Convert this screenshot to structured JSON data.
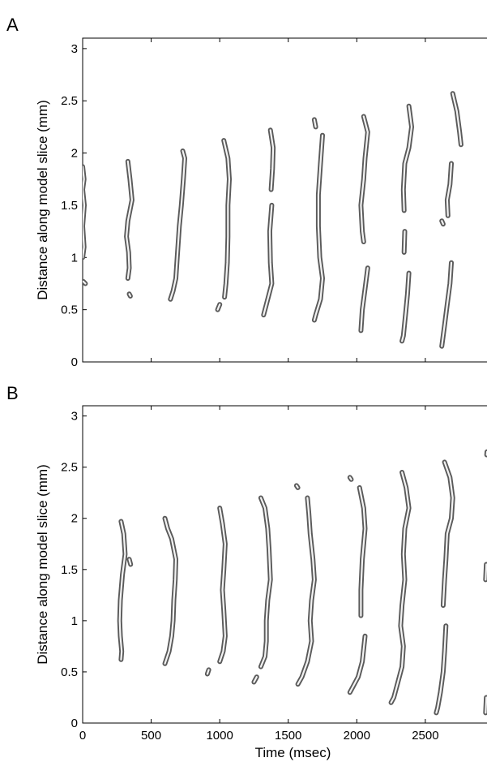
{
  "chart_data": [
    {
      "panel": "A",
      "type": "contour",
      "xlabel": "",
      "ylabel": "Distance along model slice (mm)",
      "xlim": [
        0,
        2950
      ],
      "ylim": [
        0,
        3.1
      ],
      "xticks": [
        0,
        500,
        1000,
        1500,
        2000,
        2500
      ],
      "xtick_labels": [],
      "yticks": [
        0,
        0.5,
        1,
        1.5,
        2,
        2.5,
        3
      ],
      "ytick_labels": [
        "0",
        "0.5",
        "1",
        "1.5",
        "2",
        "2.5",
        "3"
      ],
      "wavefronts": [
        {
          "segments": [
            [
              [
                0,
                1.87
              ],
              [
                10,
                1.75
              ],
              [
                0,
                1.65
              ],
              [
                12,
                1.5
              ],
              [
                0,
                1.3
              ],
              [
                10,
                1.1
              ],
              [
                0,
                1.0
              ]
            ],
            [
              [
                5,
                0.77
              ],
              [
                20,
                0.75
              ]
            ]
          ]
        },
        {
          "segments": [
            [
              [
                330,
                1.92
              ],
              [
                345,
                1.75
              ],
              [
                360,
                1.55
              ],
              [
                330,
                1.35
              ],
              [
                320,
                1.2
              ],
              [
                335,
                1.05
              ],
              [
                340,
                0.9
              ],
              [
                330,
                0.8
              ]
            ],
            [
              [
                340,
                0.65
              ],
              [
                348,
                0.63
              ]
            ]
          ]
        },
        {
          "segments": [
            [
              [
                730,
                2.02
              ],
              [
                745,
                1.95
              ],
              [
                735,
                1.75
              ],
              [
                720,
                1.5
              ],
              [
                705,
                1.3
              ],
              [
                690,
                1.0
              ],
              [
                680,
                0.8
              ],
              [
                660,
                0.68
              ],
              [
                640,
                0.6
              ]
            ]
          ]
        },
        {
          "segments": [
            [
              [
                1030,
                2.12
              ],
              [
                1060,
                1.95
              ],
              [
                1070,
                1.75
              ],
              [
                1060,
                1.5
              ],
              [
                1060,
                1.2
              ],
              [
                1055,
                0.95
              ],
              [
                1045,
                0.75
              ],
              [
                1035,
                0.62
              ]
            ],
            [
              [
                1000,
                0.55
              ],
              [
                985,
                0.5
              ]
            ]
          ]
        },
        {
          "segments": [
            [
              [
                1370,
                2.22
              ],
              [
                1390,
                2.05
              ],
              [
                1385,
                1.85
              ],
              [
                1375,
                1.65
              ]
            ],
            [
              [
                1380,
                1.5
              ],
              [
                1365,
                1.25
              ],
              [
                1370,
                0.95
              ],
              [
                1380,
                0.75
              ],
              [
                1340,
                0.55
              ],
              [
                1320,
                0.45
              ]
            ]
          ]
        },
        {
          "segments": [
            [
              [
                1690,
                2.32
              ],
              [
                1700,
                2.25
              ]
            ],
            [
              [
                1750,
                2.17
              ],
              [
                1735,
                1.9
              ],
              [
                1720,
                1.6
              ],
              [
                1720,
                1.3
              ],
              [
                1730,
                1.0
              ],
              [
                1750,
                0.8
              ],
              [
                1735,
                0.6
              ],
              [
                1700,
                0.45
              ],
              [
                1690,
                0.4
              ]
            ]
          ]
        },
        {
          "segments": [
            [
              [
                2050,
                2.35
              ],
              [
                2080,
                2.2
              ],
              [
                2060,
                1.95
              ],
              [
                2050,
                1.75
              ],
              [
                2030,
                1.5
              ],
              [
                2040,
                1.25
              ],
              [
                2050,
                1.15
              ]
            ],
            [
              [
                2080,
                0.9
              ],
              [
                2060,
                0.7
              ],
              [
                2040,
                0.5
              ],
              [
                2030,
                0.3
              ]
            ]
          ]
        },
        {
          "segments": [
            [
              [
                2380,
                2.45
              ],
              [
                2400,
                2.25
              ],
              [
                2380,
                2.05
              ],
              [
                2350,
                1.9
              ],
              [
                2340,
                1.65
              ],
              [
                2345,
                1.45
              ]
            ],
            [
              [
                2350,
                1.25
              ],
              [
                2345,
                1.05
              ]
            ],
            [
              [
                2380,
                0.85
              ],
              [
                2370,
                0.65
              ],
              [
                2355,
                0.45
              ],
              [
                2340,
                0.25
              ],
              [
                2330,
                0.2
              ]
            ]
          ]
        },
        {
          "segments": [
            [
              [
                2700,
                2.57
              ],
              [
                2730,
                2.4
              ],
              [
                2750,
                2.2
              ],
              [
                2760,
                2.08
              ]
            ],
            [
              [
                2690,
                1.9
              ],
              [
                2680,
                1.7
              ],
              [
                2660,
                1.55
              ],
              [
                2665,
                1.4
              ]
            ],
            [
              [
                2620,
                1.35
              ],
              [
                2630,
                1.32
              ]
            ],
            [
              [
                2690,
                0.95
              ],
              [
                2680,
                0.75
              ],
              [
                2660,
                0.55
              ],
              [
                2640,
                0.35
              ],
              [
                2620,
                0.15
              ]
            ]
          ]
        }
      ]
    },
    {
      "panel": "B",
      "type": "contour",
      "xlabel": "Time (msec)",
      "ylabel": "Distance along model slice (mm)",
      "xlim": [
        0,
        2950
      ],
      "ylim": [
        0,
        3.1
      ],
      "xticks": [
        0,
        500,
        1000,
        1500,
        2000,
        2500
      ],
      "xtick_labels": [
        "0",
        "500",
        "1000",
        "1500",
        "2000",
        "2500"
      ],
      "yticks": [
        0,
        0.5,
        1,
        1.5,
        2,
        2.5,
        3
      ],
      "ytick_labels": [
        "0",
        "0.5",
        "1",
        "1.5",
        "2",
        "2.5",
        "3"
      ],
      "wavefronts": [
        {
          "segments": [
            [
              [
                280,
                1.97
              ],
              [
                300,
                1.85
              ],
              [
                310,
                1.65
              ],
              [
                290,
                1.45
              ],
              [
                275,
                1.2
              ],
              [
                270,
                1.0
              ],
              [
                275,
                0.85
              ],
              [
                285,
                0.7
              ],
              [
                280,
                0.62
              ]
            ],
            [
              [
                340,
                1.6
              ],
              [
                350,
                1.55
              ]
            ]
          ]
        },
        {
          "segments": [
            [
              [
                600,
                2.0
              ],
              [
                620,
                1.9
              ],
              [
                650,
                1.8
              ],
              [
                680,
                1.6
              ],
              [
                675,
                1.4
              ],
              [
                665,
                1.2
              ],
              [
                660,
                1.0
              ],
              [
                650,
                0.85
              ],
              [
                630,
                0.7
              ],
              [
                600,
                0.58
              ]
            ]
          ]
        },
        {
          "segments": [
            [
              [
                1000,
                2.1
              ],
              [
                1020,
                1.95
              ],
              [
                1040,
                1.75
              ],
              [
                1030,
                1.5
              ],
              [
                1020,
                1.3
              ],
              [
                1030,
                1.1
              ],
              [
                1040,
                0.85
              ],
              [
                1025,
                0.7
              ],
              [
                1000,
                0.6
              ]
            ],
            [
              [
                920,
                0.52
              ],
              [
                910,
                0.48
              ]
            ]
          ]
        },
        {
          "segments": [
            [
              [
                1300,
                2.2
              ],
              [
                1330,
                2.1
              ],
              [
                1350,
                1.9
              ],
              [
                1360,
                1.7
              ],
              [
                1370,
                1.4
              ],
              [
                1350,
                1.2
              ],
              [
                1340,
                1.0
              ],
              [
                1340,
                0.8
              ],
              [
                1330,
                0.65
              ],
              [
                1300,
                0.55
              ]
            ],
            [
              [
                1270,
                0.45
              ],
              [
                1250,
                0.4
              ]
            ]
          ]
        },
        {
          "segments": [
            [
              [
                1560,
                2.32
              ],
              [
                1570,
                2.3
              ]
            ],
            [
              [
                1640,
                2.2
              ],
              [
                1650,
                2.05
              ],
              [
                1660,
                1.85
              ],
              [
                1680,
                1.6
              ],
              [
                1690,
                1.4
              ],
              [
                1670,
                1.2
              ],
              [
                1660,
                1.0
              ],
              [
                1670,
                0.8
              ],
              [
                1640,
                0.6
              ],
              [
                1600,
                0.45
              ],
              [
                1570,
                0.38
              ]
            ]
          ]
        },
        {
          "segments": [
            [
              [
                1950,
                2.4
              ],
              [
                1960,
                2.38
              ]
            ],
            [
              [
                2020,
                2.3
              ],
              [
                2050,
                2.1
              ],
              [
                2060,
                1.9
              ],
              [
                2040,
                1.6
              ],
              [
                2030,
                1.3
              ],
              [
                2030,
                1.05
              ]
            ],
            [
              [
                2060,
                0.85
              ],
              [
                2040,
                0.6
              ],
              [
                2010,
                0.45
              ],
              [
                1970,
                0.35
              ],
              [
                1950,
                0.3
              ]
            ]
          ]
        },
        {
          "segments": [
            [
              [
                2330,
                2.45
              ],
              [
                2360,
                2.3
              ],
              [
                2380,
                2.1
              ],
              [
                2350,
                1.9
              ],
              [
                2340,
                1.65
              ],
              [
                2350,
                1.4
              ],
              [
                2330,
                1.15
              ],
              [
                2320,
                0.95
              ],
              [
                2340,
                0.75
              ],
              [
                2330,
                0.55
              ],
              [
                2300,
                0.4
              ],
              [
                2270,
                0.25
              ],
              [
                2250,
                0.2
              ]
            ]
          ]
        },
        {
          "segments": [
            [
              [
                2640,
                2.55
              ],
              [
                2680,
                2.4
              ],
              [
                2700,
                2.2
              ],
              [
                2690,
                2.0
              ],
              [
                2660,
                1.85
              ],
              [
                2650,
                1.6
              ],
              [
                2640,
                1.4
              ],
              [
                2630,
                1.15
              ]
            ],
            [
              [
                2650,
                0.95
              ],
              [
                2640,
                0.7
              ],
              [
                2630,
                0.5
              ],
              [
                2610,
                0.3
              ],
              [
                2590,
                0.15
              ],
              [
                2580,
                0.1
              ]
            ]
          ]
        },
        {
          "segments": [
            [
              [
                2950,
                2.65
              ],
              [
                2948,
                2.62
              ]
            ],
            [
              [
                2945,
                1.55
              ],
              [
                2940,
                1.4
              ]
            ],
            [
              [
                2945,
                0.25
              ],
              [
                2940,
                0.1
              ]
            ]
          ]
        }
      ]
    }
  ],
  "panels": [
    {
      "letter": "A"
    },
    {
      "letter": "B"
    }
  ]
}
